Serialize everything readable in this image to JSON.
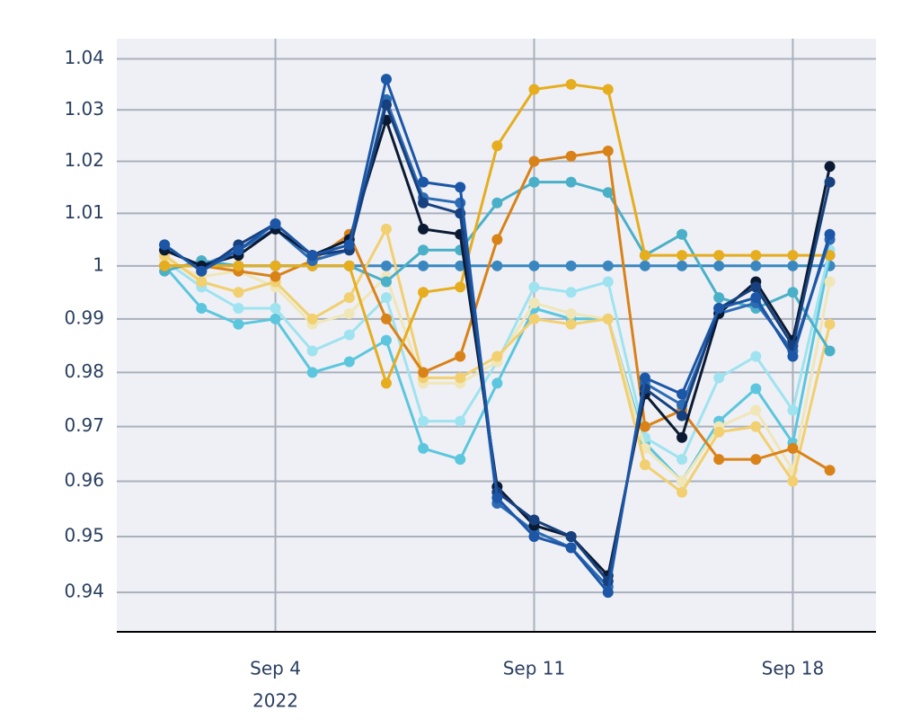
{
  "chart_data": {
    "type": "line",
    "x": [
      "2022-09-01",
      "2022-09-02",
      "2022-09-03",
      "2022-09-04",
      "2022-09-05",
      "2022-09-06",
      "2022-09-07",
      "2022-09-08",
      "2022-09-09",
      "2022-09-10",
      "2022-09-11",
      "2022-09-12",
      "2022-09-13",
      "2022-09-14",
      "2022-09-15",
      "2022-09-16",
      "2022-09-17",
      "2022-09-18",
      "2022-09-19"
    ],
    "xlim": [
      "2022-08-30T17:00",
      "2022-09-20T06:00"
    ],
    "xticks": [
      {
        "value": "2022-09-04",
        "label": "Sep 4"
      },
      {
        "value": "2022-09-11",
        "label": "Sep 11"
      },
      {
        "value": "2022-09-18",
        "label": "Sep 18"
      }
    ],
    "xtick_year": "2022",
    "ylim": [
      0.933,
      1.044
    ],
    "yticks": [
      0.94,
      0.95,
      0.96,
      0.97,
      0.98,
      0.99,
      1,
      1.01,
      1.02,
      1.03,
      1.04
    ],
    "log_y": true,
    "grid": true,
    "series": [
      {
        "color": "#3a87c0",
        "values": [
          1.0,
          1.0,
          1.0,
          1.0,
          1.0,
          1.0,
          1.0,
          1.0,
          1.0,
          1.0,
          1.0,
          1.0,
          1.0,
          1.0,
          1.0,
          1.0,
          1.0,
          1.0,
          1.0
        ]
      },
      {
        "color": "#5bc6de",
        "values": [
          1.0,
          0.992,
          0.989,
          0.99,
          0.98,
          0.982,
          0.986,
          0.966,
          0.964,
          0.978,
          0.992,
          0.99,
          0.99,
          0.967,
          0.96,
          0.971,
          0.977,
          0.967,
          1.002
        ]
      },
      {
        "color": "#9fe3f0",
        "values": [
          1.001,
          0.996,
          0.992,
          0.992,
          0.984,
          0.987,
          0.994,
          0.971,
          0.971,
          0.982,
          0.996,
          0.995,
          0.997,
          0.968,
          0.964,
          0.979,
          0.983,
          0.973,
          1.003
        ]
      },
      {
        "color": "#f0e6b8",
        "values": [
          1.001,
          0.998,
          0.999,
          0.996,
          0.989,
          0.991,
          0.998,
          0.978,
          0.978,
          0.982,
          0.993,
          0.991,
          0.99,
          0.966,
          0.96,
          0.97,
          0.973,
          0.962,
          0.997
        ]
      },
      {
        "color": "#f2cf6f",
        "values": [
          1.002,
          0.997,
          0.995,
          0.997,
          0.99,
          0.994,
          1.007,
          0.979,
          0.979,
          0.983,
          0.99,
          0.989,
          0.99,
          0.963,
          0.958,
          0.969,
          0.97,
          0.96,
          0.989
        ]
      },
      {
        "color": "#4ab0c8",
        "values": [
          0.999,
          1.001,
          1.0,
          1.0,
          1.0,
          1.0,
          0.997,
          1.003,
          1.003,
          1.012,
          1.016,
          1.016,
          1.014,
          1.002,
          1.006,
          0.994,
          0.992,
          0.995,
          0.984
        ]
      },
      {
        "color": "#d98218",
        "values": [
          1.0,
          1.0,
          0.999,
          0.998,
          1.001,
          1.006,
          0.99,
          0.98,
          0.983,
          1.005,
          1.02,
          1.021,
          1.022,
          0.97,
          0.973,
          0.964,
          0.964,
          0.966,
          0.962
        ]
      },
      {
        "color": "#e6ad1e",
        "values": [
          1.0,
          1.0,
          1.0,
          1.0,
          1.0,
          1.0,
          0.978,
          0.995,
          0.996,
          1.023,
          1.034,
          1.035,
          1.034,
          1.002,
          1.002,
          1.002,
          1.002,
          1.002,
          1.002
        ]
      },
      {
        "color": "#2d6bb5",
        "values": [
          1.003,
          1.0,
          1.003,
          1.007,
          1.001,
          1.003,
          1.032,
          1.013,
          1.012,
          0.956,
          0.951,
          0.948,
          0.941,
          0.978,
          0.974,
          0.991,
          0.993,
          0.984,
          1.005
        ]
      },
      {
        "color": "#0b1a33",
        "values": [
          1.003,
          1.0,
          1.002,
          1.007,
          1.002,
          1.005,
          1.028,
          1.007,
          1.006,
          0.959,
          0.952,
          0.95,
          0.943,
          0.976,
          0.968,
          0.991,
          0.997,
          0.986,
          1.019
        ]
      },
      {
        "color": "#16407e",
        "values": [
          1.004,
          0.999,
          1.004,
          1.008,
          1.002,
          1.003,
          1.031,
          1.012,
          1.01,
          0.958,
          0.953,
          0.95,
          0.942,
          0.977,
          0.972,
          0.992,
          0.996,
          0.985,
          1.016
        ]
      },
      {
        "color": "#1c56a6",
        "values": [
          1.004,
          0.999,
          1.003,
          1.008,
          1.002,
          1.004,
          1.036,
          1.016,
          1.015,
          0.957,
          0.95,
          0.948,
          0.94,
          0.979,
          0.976,
          0.992,
          0.994,
          0.983,
          1.006
        ]
      }
    ]
  }
}
